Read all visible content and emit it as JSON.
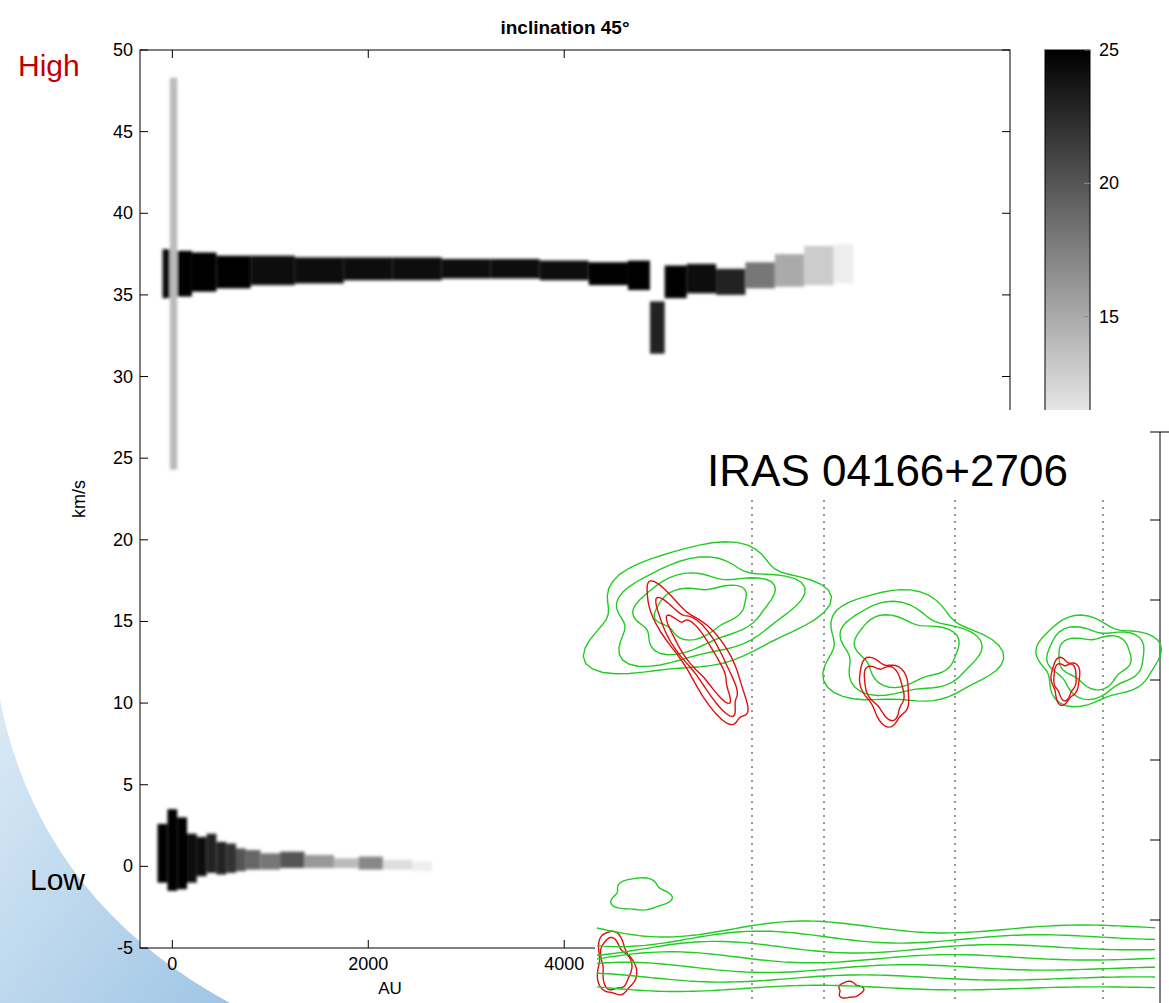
{
  "chart_data": {
    "type": "density",
    "title": "inclination 45°",
    "x_label": "AU",
    "y_label": "km/s",
    "xlim": [
      -330,
      8550
    ],
    "ylim": [
      -5,
      50
    ],
    "xticks": [
      0,
      2000,
      4000
    ],
    "yticks": [
      -5,
      0,
      5,
      10,
      15,
      20,
      25,
      30,
      35,
      40,
      45,
      50
    ],
    "colorbar": {
      "range": [
        10,
        25
      ],
      "ticks": [
        15,
        20,
        25
      ]
    },
    "series": [
      {
        "color": "#000000",
        "x": [
          -50,
          0,
          100,
          300,
          600,
          1000,
          1500,
          2000,
          2500,
          3000,
          3500,
          4000,
          4500,
          4800,
          4950,
          5100,
          5400,
          5700,
          6000,
          6300,
          6600,
          6900
        ],
        "values": [
          36.3,
          36.3,
          36.3,
          36.4,
          36.4,
          36.5,
          36.5,
          36.6,
          36.6,
          36.6,
          36.6,
          36.5,
          36.3,
          36.2,
          33,
          35.8,
          36,
          35.8,
          36.2,
          36.5,
          36.8,
          36.9
        ],
        "spread": [
          1.5,
          12,
          1.4,
          1.2,
          1.0,
          0.9,
          0.8,
          0.7,
          0.7,
          0.6,
          0.6,
          0.6,
          0.7,
          0.9,
          1.6,
          1.0,
          0.9,
          0.8,
          0.8,
          1.0,
          1.2,
          1.2
        ],
        "intensity": [
          24,
          14,
          25,
          25,
          25,
          24,
          24,
          24,
          24,
          24,
          24,
          24,
          25,
          25,
          23,
          25,
          24,
          23,
          18,
          15,
          13,
          11
        ]
      },
      {
        "color": "#000000",
        "x": [
          -100,
          0,
          100,
          200,
          300,
          400,
          500,
          600,
          700,
          800,
          1000,
          1200,
          1500,
          1800,
          2000,
          2300,
          2600
        ],
        "values": [
          0.8,
          1,
          0.8,
          0.5,
          0.6,
          0.8,
          0.5,
          0.5,
          0.4,
          0.4,
          0.3,
          0.4,
          0.3,
          0.2,
          0.2,
          0.1,
          0
        ],
        "spread": [
          1.8,
          2.5,
          2.2,
          1.5,
          1.2,
          1.2,
          1,
          0.9,
          0.7,
          0.6,
          0.5,
          0.5,
          0.4,
          0.3,
          0.4,
          0.3,
          0.3
        ],
        "intensity": [
          25,
          25,
          25,
          24,
          24,
          23,
          23,
          22,
          20,
          19,
          18,
          20,
          16,
          14,
          17,
          12,
          11
        ]
      }
    ],
    "annotations": [
      {
        "text": "High",
        "color": "#c00000"
      },
      {
        "text": "Low",
        "color": "#000000"
      },
      {
        "text": "IRAS 04166+2706",
        "color": "#000000"
      }
    ]
  }
}
